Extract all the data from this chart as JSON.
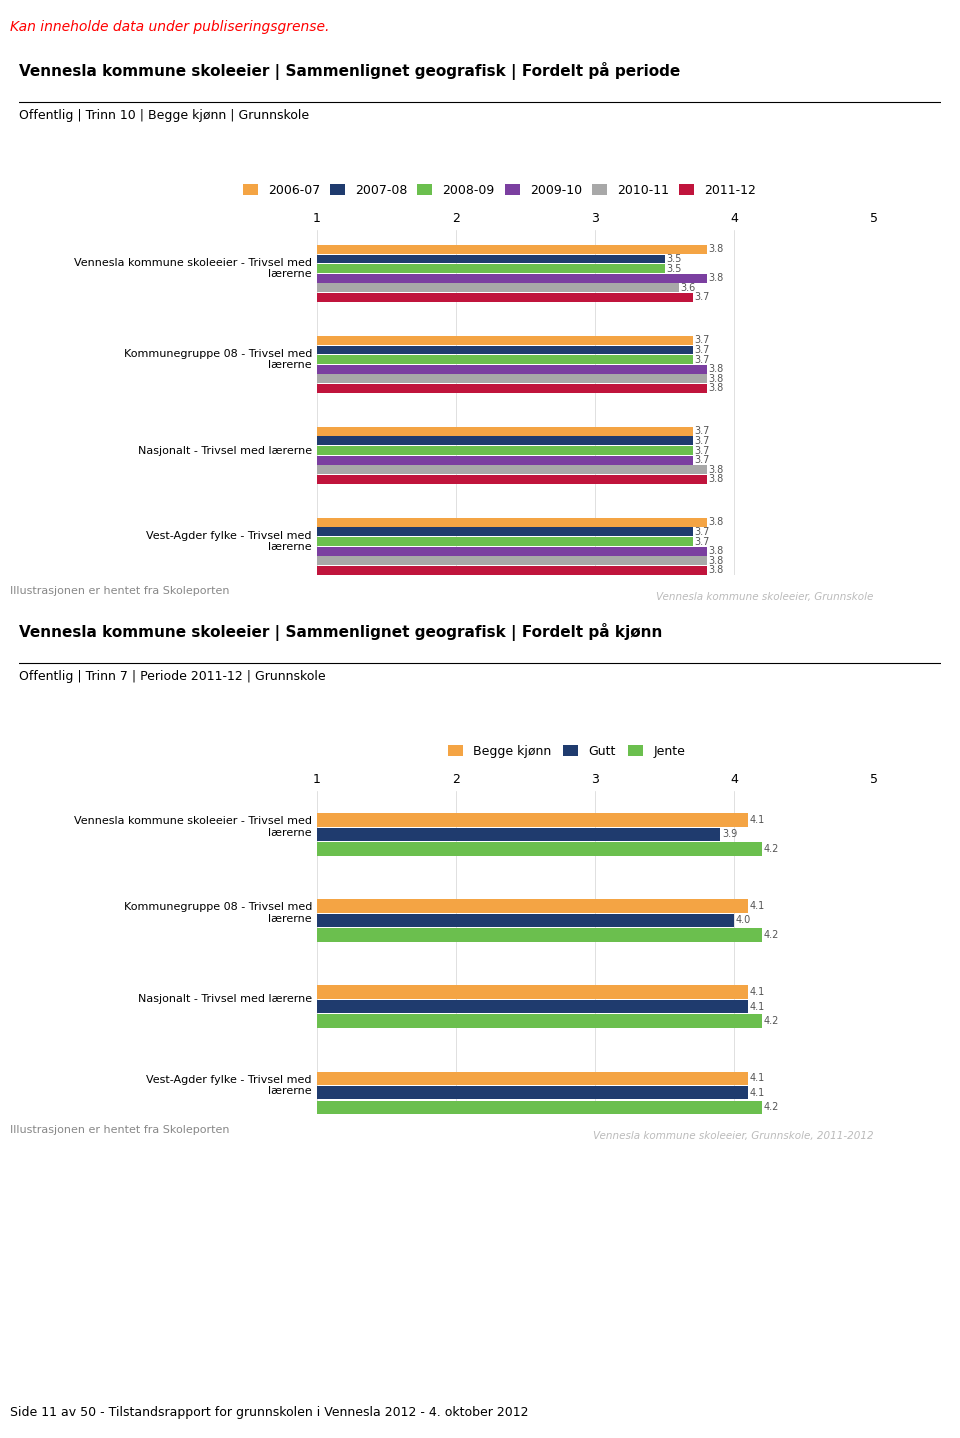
{
  "page_header": "Kan inneholde data under publiseringsgrense.",
  "chart1": {
    "title": "Vennesla kommune skoleeier | Sammenlignet geografisk | Fordelt på periode",
    "subtitle": "Offentlig | Trinn 10 | Begge kjønn | Grunnskole",
    "legend_labels": [
      "2006-07",
      "2007-08",
      "2008-09",
      "2009-10",
      "2010-11",
      "2011-12"
    ],
    "legend_colors": [
      "#F4A444",
      "#1F3B6E",
      "#6BBF4E",
      "#7B3FA0",
      "#A8A8A8",
      "#C0143C"
    ],
    "categories": [
      "Vennesla kommune skoleeier - Trivsel med\nlærerne",
      "Kommunegruppe 08 - Trivsel med\nlærerne",
      "Nasjonalt - Trivsel med lærerne",
      "Vest-Agder fylke - Trivsel med\nlærerne"
    ],
    "values": [
      [
        3.8,
        3.5,
        3.5,
        3.8,
        3.6,
        3.7
      ],
      [
        3.7,
        3.7,
        3.7,
        3.8,
        3.8,
        3.8
      ],
      [
        3.7,
        3.7,
        3.7,
        3.7,
        3.8,
        3.8
      ],
      [
        3.8,
        3.7,
        3.7,
        3.8,
        3.8,
        3.8
      ]
    ],
    "xlim": [
      1,
      5
    ],
    "xticks": [
      1,
      2,
      3,
      4,
      5
    ],
    "watermark": "Vennesla kommune skoleeier, Grunnskole",
    "footer": "Illustrasjonen er hentet fra Skoleporten"
  },
  "chart2": {
    "title": "Vennesla kommune skoleeier | Sammenlignet geografisk | Fordelt på kjønn",
    "subtitle": "Offentlig | Trinn 7 | Periode 2011-12 | Grunnskole",
    "legend_labels": [
      "Begge kjønn",
      "Gutt",
      "Jente"
    ],
    "legend_colors": [
      "#F4A444",
      "#1F3B6E",
      "#6BBF4E"
    ],
    "categories": [
      "Vennesla kommune skoleeier - Trivsel med\nlærerne",
      "Kommunegruppe 08 - Trivsel med\nlærerne",
      "Nasjonalt - Trivsel med lærerne",
      "Vest-Agder fylke - Trivsel med\nlærerne"
    ],
    "values": [
      [
        4.1,
        3.9,
        4.2
      ],
      [
        4.1,
        4.0,
        4.2
      ],
      [
        4.1,
        4.1,
        4.2
      ],
      [
        4.1,
        4.1,
        4.2
      ]
    ],
    "xlim": [
      1,
      5
    ],
    "xticks": [
      1,
      2,
      3,
      4,
      5
    ],
    "watermark": "Vennesla kommune skoleeier, Grunnskole, 2011-2012",
    "footer": "Illustrasjonen er hentet fra Skoleporten"
  },
  "page_footer": "Side 11 av 50 - Tilstandsrapport for grunnskolen i Vennesla 2012 - 4. oktober 2012",
  "background_color": "#FFFFFF"
}
